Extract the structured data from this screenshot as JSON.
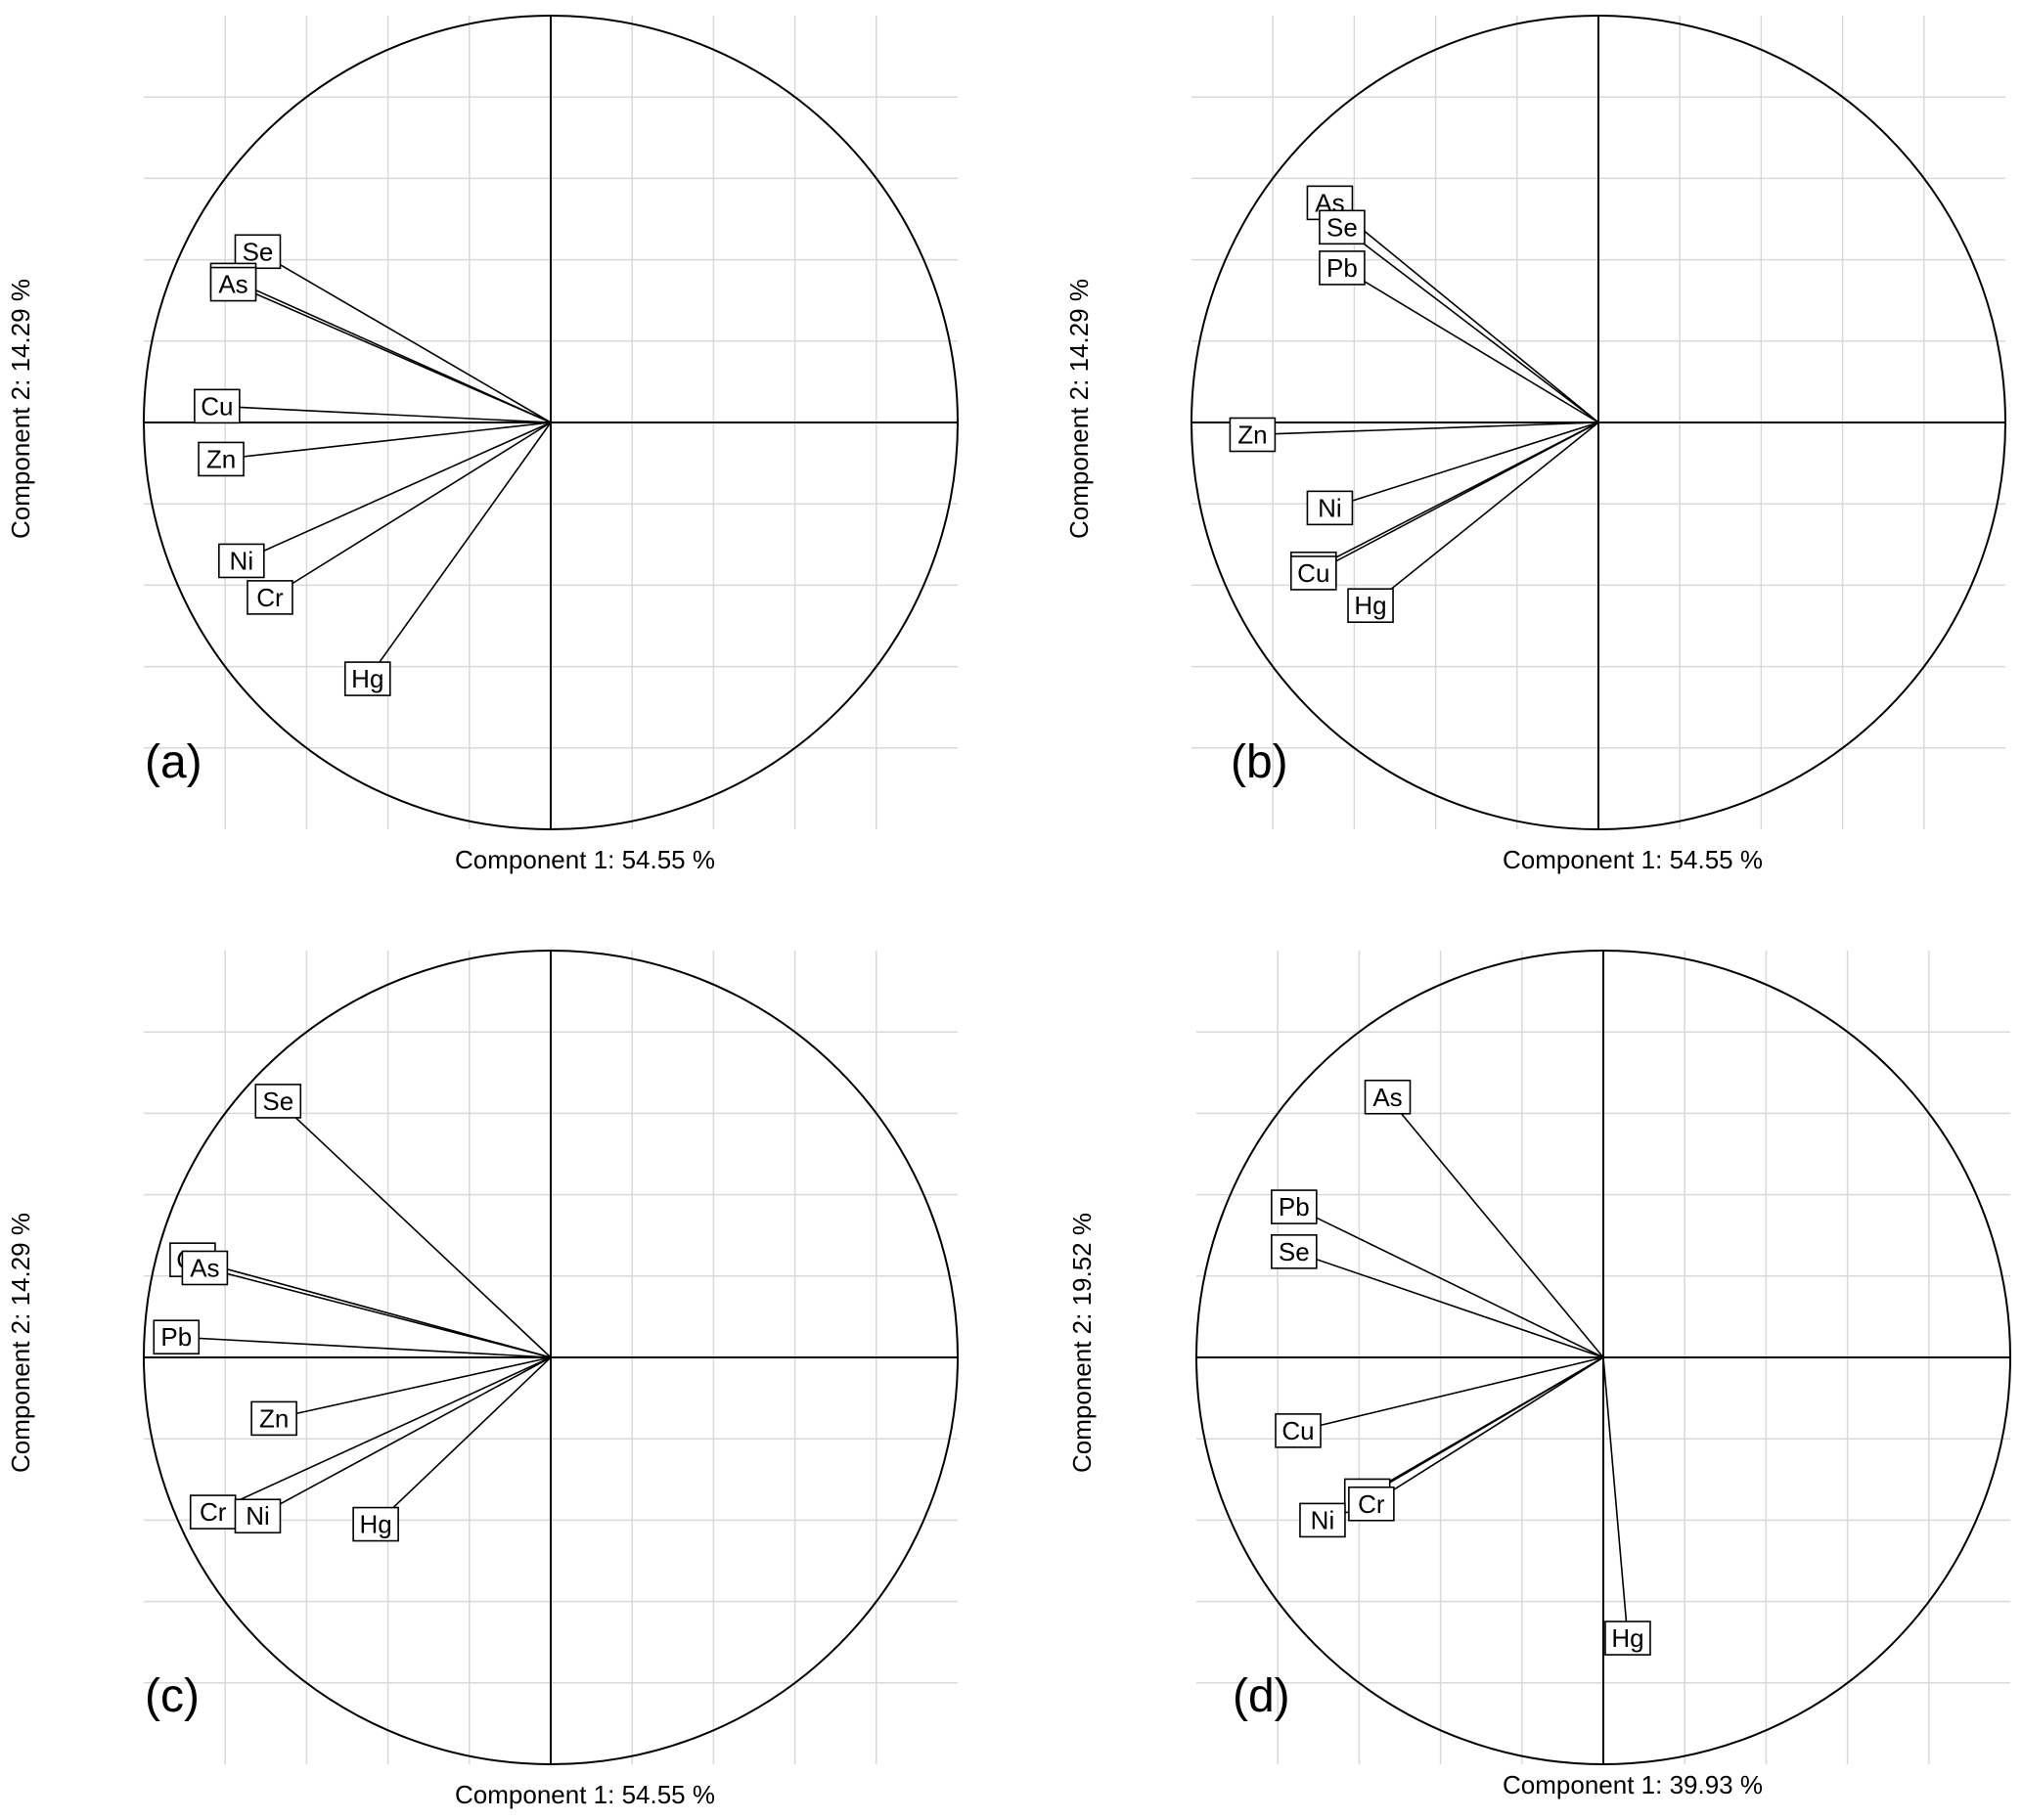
{
  "chart_data": [
    {
      "type": "scatter",
      "panel_label": "(a)",
      "xlabel": "Component 1: 54.55 %",
      "ylabel": "Component 2: 14.29 %",
      "xlim": [
        -1,
        1
      ],
      "ylim": [
        -1,
        1
      ],
      "grid": true,
      "points": [
        {
          "name": "Se",
          "x": -0.72,
          "y": 0.42
        },
        {
          "name": "Pb",
          "x": -0.78,
          "y": 0.35
        },
        {
          "name": "As",
          "x": -0.78,
          "y": 0.34
        },
        {
          "name": "Cu",
          "x": -0.82,
          "y": 0.04
        },
        {
          "name": "Zn",
          "x": -0.81,
          "y": -0.09
        },
        {
          "name": "Ni",
          "x": -0.76,
          "y": -0.34
        },
        {
          "name": "Cr",
          "x": -0.69,
          "y": -0.43
        },
        {
          "name": "Hg",
          "x": -0.45,
          "y": -0.63
        }
      ]
    },
    {
      "type": "scatter",
      "panel_label": "(b)",
      "xlabel": "Component 1: 54.55 %",
      "ylabel": "Component 2: 14.29 %",
      "xlim": [
        -1,
        1
      ],
      "ylim": [
        -1,
        1
      ],
      "grid": true,
      "points": [
        {
          "name": "As",
          "x": -0.66,
          "y": 0.54
        },
        {
          "name": "Se",
          "x": -0.63,
          "y": 0.48
        },
        {
          "name": "Pb",
          "x": -0.63,
          "y": 0.38
        },
        {
          "name": "Zn",
          "x": -0.85,
          "y": -0.03
        },
        {
          "name": "Ni",
          "x": -0.66,
          "y": -0.21
        },
        {
          "name": "Cr",
          "x": -0.7,
          "y": -0.36
        },
        {
          "name": "Cu",
          "x": -0.7,
          "y": -0.37
        },
        {
          "name": "Hg",
          "x": -0.56,
          "y": -0.45
        }
      ]
    },
    {
      "type": "scatter",
      "panel_label": "(c)",
      "xlabel": "Component 1: 54.55 %",
      "ylabel": "Component 2: 14.29 %",
      "xlim": [
        -1,
        1
      ],
      "ylim": [
        -1,
        1
      ],
      "grid": true,
      "points": [
        {
          "name": "Se",
          "x": -0.67,
          "y": 0.63
        },
        {
          "name": "Cu",
          "x": -0.88,
          "y": 0.24
        },
        {
          "name": "As",
          "x": -0.85,
          "y": 0.22
        },
        {
          "name": "Pb",
          "x": -0.92,
          "y": 0.05
        },
        {
          "name": "Zn",
          "x": -0.68,
          "y": -0.15
        },
        {
          "name": "Cr",
          "x": -0.83,
          "y": -0.38
        },
        {
          "name": "Ni",
          "x": -0.72,
          "y": -0.39
        },
        {
          "name": "Hg",
          "x": -0.43,
          "y": -0.41
        }
      ]
    },
    {
      "type": "scatter",
      "panel_label": "(d)",
      "xlabel": "Component 1: 39.93 %",
      "ylabel": "Component 2: 19.52 %",
      "xlim": [
        -1,
        1
      ],
      "ylim": [
        -1,
        1
      ],
      "grid": true,
      "points": [
        {
          "name": "As",
          "x": -0.53,
          "y": 0.64
        },
        {
          "name": "Pb",
          "x": -0.76,
          "y": 0.37
        },
        {
          "name": "Se",
          "x": -0.76,
          "y": 0.26
        },
        {
          "name": "Cu",
          "x": -0.75,
          "y": -0.18
        },
        {
          "name": "Zn",
          "x": -0.58,
          "y": -0.34
        },
        {
          "name": "Cr",
          "x": -0.57,
          "y": -0.36
        },
        {
          "name": "Ni",
          "x": -0.69,
          "y": -0.4
        },
        {
          "name": "Hg",
          "x": 0.06,
          "y": -0.69
        }
      ]
    }
  ]
}
